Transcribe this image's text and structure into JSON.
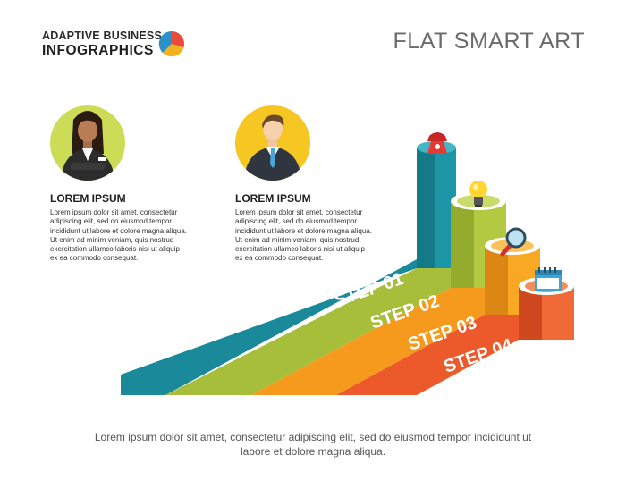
{
  "header": {
    "logo_line1": "ADAPTIVE BUSINESS",
    "logo_line2": "INFOGRAPHICS",
    "title": "FLAT SMART ART"
  },
  "profiles": [
    {
      "title": "LOREM IPSUM",
      "text": "Lorem ipsum dolor sit amet, consectetur adipiscing elit, sed do eiusmod tempor incididunt ut labore et dolore magna aliqua. Ut enim ad minim veniam, quis nostrud exercitation ullamco laboris nisi ut aliquip ex ea commodo consequat."
    },
    {
      "title": "LOREM IPSUM",
      "text": "Lorem ipsum dolor sit amet, consectetur adipiscing elit, sed do eiusmod tempor incididunt ut labore et dolore magna aliqua. Ut enim ad minim veniam, quis nostrud exercitation ullamco laboris nisi ut aliquip ex ea commodo consequat."
    }
  ],
  "steps": [
    {
      "label": "STEP 01",
      "color": "#1a8a9a",
      "icon": "telephone-icon"
    },
    {
      "label": "STEP 02",
      "color": "#a6be3a",
      "icon": "lightbulb-icon"
    },
    {
      "label": "STEP 03",
      "color": "#f59a1c",
      "icon": "magnifier-icon"
    },
    {
      "label": "STEP 04",
      "color": "#ec5a2c",
      "icon": "calendar-icon"
    }
  ],
  "footer": {
    "text": "Lorem ipsum dolor sit amet, consectetur adipiscing elit, sed do eiusmod tempor incididunt ut labore et dolore magna aliqua."
  }
}
